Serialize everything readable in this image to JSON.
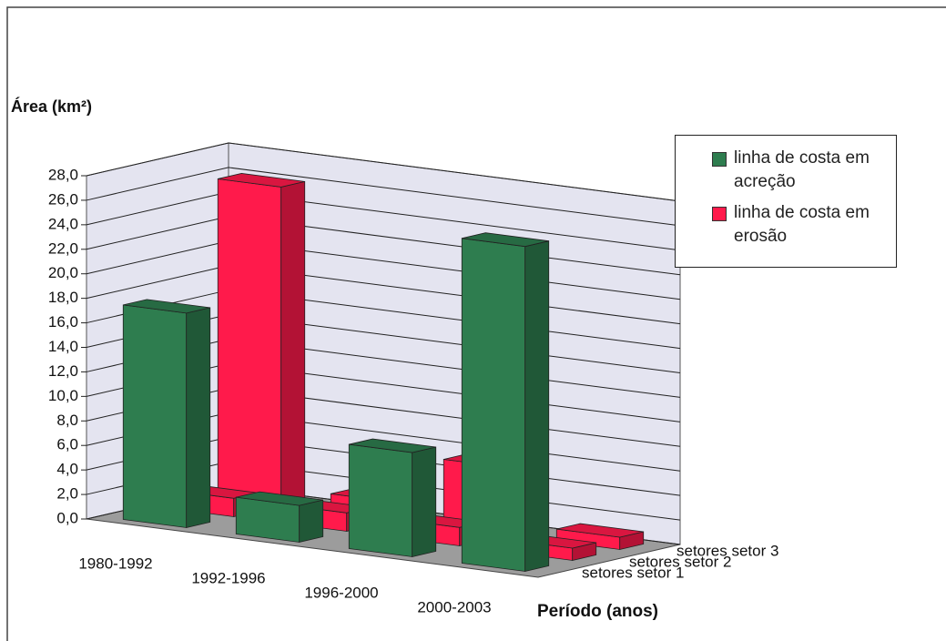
{
  "chart_data": {
    "type": "bar3d",
    "y_label": "Área (km²)",
    "x_label": "Período (anos)",
    "categories": [
      "1980-1992",
      "1992-1996",
      "1996-2000",
      "2000-2003"
    ],
    "series": [
      {
        "name": "setores setor 1",
        "colors": [
          "#2e7d4f",
          "#2e7d4f",
          "#2e7d4f",
          "#2e7d4f"
        ],
        "values": [
          17.5,
          3.0,
          8.5,
          26.5
        ]
      },
      {
        "name": "setores setor 2",
        "colors": [
          "#ff1a4b",
          "#ff1a4b",
          "#ff1a4b",
          "#ff1a4b"
        ],
        "values": [
          1.5,
          1.5,
          1.5,
          1.0
        ]
      },
      {
        "name": "setores setor 3",
        "colors": [
          "#ff1a4b",
          "#ff1a4b",
          "#ff1a4b",
          "#ff1a4b"
        ],
        "values": [
          26.0,
          1.5,
          5.5,
          1.0
        ]
      }
    ],
    "legend": [
      {
        "label": "linha de costa em acreção",
        "color": "#2e7d4f"
      },
      {
        "label": "linha de costa em erosão",
        "color": "#ff1a4b"
      }
    ],
    "ylim": [
      0,
      28
    ],
    "yticks": [
      {
        "value": 0,
        "label": "0,0"
      },
      {
        "value": 2,
        "label": "2,0"
      },
      {
        "value": 4,
        "label": "4,0"
      },
      {
        "value": 6,
        "label": "6,0"
      },
      {
        "value": 8,
        "label": "8,0"
      },
      {
        "value": 10,
        "label": "10,0"
      },
      {
        "value": 12,
        "label": "12,0"
      },
      {
        "value": 14,
        "label": "14,0"
      },
      {
        "value": 16,
        "label": "16,0"
      },
      {
        "value": 18,
        "label": "18,0"
      },
      {
        "value": 20,
        "label": "20,0"
      },
      {
        "value": 22,
        "label": "22,0"
      },
      {
        "value": 24,
        "label": "24,0"
      },
      {
        "value": 26,
        "label": "26,0"
      },
      {
        "value": 28,
        "label": "28,0"
      }
    ],
    "grid": true
  }
}
